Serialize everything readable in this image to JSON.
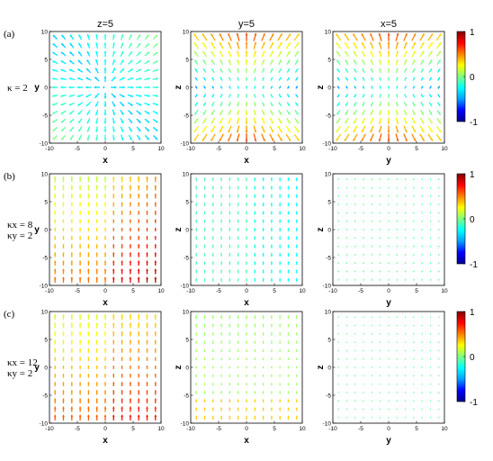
{
  "titles": [
    "z=5",
    "y=5",
    "x=5"
  ],
  "row_labels": [
    "(a)",
    "(b)",
    "(c)"
  ],
  "kappa_labels": [
    {
      "line1": "κ = 2",
      "line2": ""
    },
    {
      "line1": "κx = 8",
      "line2": "κy = 2"
    },
    {
      "line1": "κx = 12",
      "line2": "κy = 2"
    }
  ],
  "colorbar_ticks": [
    "1",
    "0",
    "-1"
  ],
  "colorbar_colors": [
    "#00008f",
    "#0000ff",
    "#00a0ff",
    "#00ffff",
    "#7fff7f",
    "#ffff00",
    "#ff8000",
    "#ff0000",
    "#800000"
  ],
  "chart_data": {
    "type": "vector-field",
    "axis_range": [
      -10,
      10
    ],
    "ticks": [
      "-10",
      "-5",
      "0",
      "5",
      "10"
    ],
    "color_range": [
      -1,
      1
    ],
    "panels": [
      {
        "row": "(a)",
        "col": "z=5",
        "xlabel": "x",
        "ylabel": "y"
      },
      {
        "row": "(a)",
        "col": "y=5",
        "xlabel": "x",
        "ylabel": "z"
      },
      {
        "row": "(a)",
        "col": "x=5",
        "xlabel": "y",
        "ylabel": "z"
      },
      {
        "row": "(b)",
        "col": "z=5",
        "xlabel": "x",
        "ylabel": "y"
      },
      {
        "row": "(b)",
        "col": "y=5",
        "xlabel": "x",
        "ylabel": "z"
      },
      {
        "row": "(b)",
        "col": "x=5",
        "xlabel": "y",
        "ylabel": "z"
      },
      {
        "row": "(c)",
        "col": "z=5",
        "xlabel": "x",
        "ylabel": "y"
      },
      {
        "row": "(c)",
        "col": "y=5",
        "xlabel": "x",
        "ylabel": "z"
      },
      {
        "row": "(c)",
        "col": "x=5",
        "xlabel": "y",
        "ylabel": "z"
      }
    ]
  }
}
